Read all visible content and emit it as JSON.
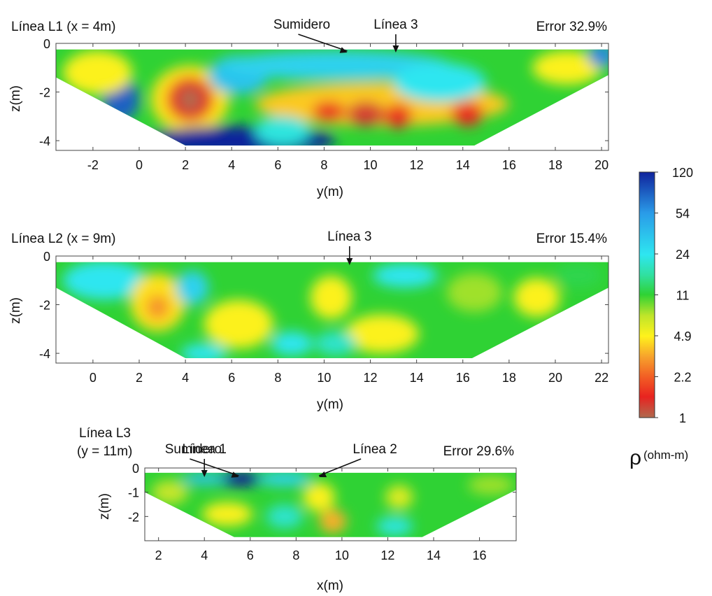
{
  "chart_data": [
    {
      "type": "heatmap",
      "title": "Línea L1 (x = 4m)",
      "error_label": "Error 32.9%",
      "xlabel": "y(m)",
      "ylabel": "z(m)",
      "xlim": [
        -3.6,
        20.3
      ],
      "ylim": [
        -4.4,
        0
      ],
      "xticks": [
        -2,
        0,
        2,
        4,
        6,
        8,
        10,
        12,
        14,
        16,
        18,
        20
      ],
      "yticks": [
        0,
        -2,
        -4
      ],
      "section_top_z": -0.25,
      "section_bottom_z": -4.2,
      "section_polygon": [
        [
          -3.6,
          -0.25
        ],
        [
          20.3,
          -0.25
        ],
        [
          20.3,
          -1.3
        ],
        [
          14.5,
          -4.2
        ],
        [
          2.0,
          -4.2
        ],
        [
          -3.6,
          -1.4
        ]
      ],
      "annotations": [
        {
          "text": "Sumidero",
          "x": 9.0,
          "arrow_type": "diagonal"
        },
        {
          "text": "Línea 3",
          "x": 11.1,
          "arrow_type": "vertical"
        }
      ],
      "anomalies": [
        {
          "y": 2.2,
          "z": -2.3,
          "rx": 1.7,
          "rz": 1.4,
          "resistivity": 4.5
        },
        {
          "y": 2.2,
          "z": -2.3,
          "rx": 1.0,
          "rz": 0.9,
          "resistivity": 1.5
        },
        {
          "y": 2.2,
          "z": -2.3,
          "rx": 0.5,
          "rz": 0.5,
          "resistivity": 1.0
        },
        {
          "y": -0.8,
          "z": -2.3,
          "rx": 0.8,
          "rz": 0.9,
          "resistivity": 80
        },
        {
          "y": -1.8,
          "z": -1.2,
          "rx": 1.5,
          "rz": 0.9,
          "resistivity": 5
        },
        {
          "y": 4.3,
          "z": -1.3,
          "rx": 1.3,
          "rz": 0.8,
          "resistivity": 35
        },
        {
          "y": 4.3,
          "z": -4.0,
          "rx": 4.2,
          "rz": 0.6,
          "resistivity": 120
        },
        {
          "y": 8.5,
          "z": -0.9,
          "rx": 5.0,
          "rz": 0.6,
          "resistivity": 30
        },
        {
          "y": 10.5,
          "z": -2.5,
          "rx": 5.5,
          "rz": 0.9,
          "resistivity": 4
        },
        {
          "y": 8.2,
          "z": -2.8,
          "rx": 0.7,
          "rz": 0.4,
          "resistivity": 1.6
        },
        {
          "y": 9.8,
          "z": -2.9,
          "rx": 0.8,
          "rz": 0.5,
          "resistivity": 1.3
        },
        {
          "y": 11.2,
          "z": -3.0,
          "rx": 0.6,
          "rz": 0.5,
          "resistivity": 1.6
        },
        {
          "y": 14.2,
          "z": -2.9,
          "rx": 0.7,
          "rz": 0.5,
          "resistivity": 1.6
        },
        {
          "y": 13.0,
          "z": -1.6,
          "rx": 2.0,
          "rz": 0.8,
          "resistivity": 24
        },
        {
          "y": 18.5,
          "z": -1.0,
          "rx": 1.5,
          "rz": 0.7,
          "resistivity": 5
        },
        {
          "y": 20.0,
          "z": -0.5,
          "rx": 0.6,
          "rz": 0.5,
          "resistivity": 60
        },
        {
          "y": 6.2,
          "z": -3.6,
          "rx": 1.2,
          "rz": 0.6,
          "resistivity": 22
        }
      ]
    },
    {
      "type": "heatmap",
      "title": "Línea L2 (x = 9m)",
      "error_label": "Error 15.4%",
      "xlabel": "y(m)",
      "ylabel": "z(m)",
      "xlim": [
        -1.6,
        22.3
      ],
      "ylim": [
        -4.4,
        0
      ],
      "xticks": [
        0,
        2,
        4,
        6,
        8,
        10,
        12,
        14,
        16,
        18,
        20,
        22
      ],
      "yticks": [
        0,
        -2,
        -4
      ],
      "section_top_z": -0.25,
      "section_bottom_z": -4.2,
      "section_polygon": [
        [
          -1.6,
          -0.25
        ],
        [
          22.3,
          -0.25
        ],
        [
          22.3,
          -1.3
        ],
        [
          16.4,
          -4.2
        ],
        [
          4.0,
          -4.2
        ],
        [
          -1.6,
          -1.3
        ]
      ],
      "annotations": [
        {
          "text": "Línea 3",
          "x": 11.1,
          "arrow_type": "vertical"
        }
      ],
      "anomalies": [
        {
          "y": 0.5,
          "z": -1.0,
          "rx": 1.8,
          "rz": 0.8,
          "resistivity": 24
        },
        {
          "y": 2.8,
          "z": -1.9,
          "rx": 1.2,
          "rz": 1.2,
          "resistivity": 4.5
        },
        {
          "y": 2.8,
          "z": -2.1,
          "rx": 0.5,
          "rz": 0.5,
          "resistivity": 3
        },
        {
          "y": 4.3,
          "z": -1.3,
          "rx": 0.7,
          "rz": 0.7,
          "resistivity": 30
        },
        {
          "y": 6.3,
          "z": -2.8,
          "rx": 1.5,
          "rz": 1.0,
          "resistivity": 5
        },
        {
          "y": 10.3,
          "z": -1.7,
          "rx": 0.9,
          "rz": 0.9,
          "resistivity": 5
        },
        {
          "y": 12.5,
          "z": -3.2,
          "rx": 1.6,
          "rz": 0.8,
          "resistivity": 5
        },
        {
          "y": 8.6,
          "z": -3.6,
          "rx": 0.9,
          "rz": 0.5,
          "resistivity": 24
        },
        {
          "y": 10.5,
          "z": -3.6,
          "rx": 0.9,
          "rz": 0.5,
          "resistivity": 20
        },
        {
          "y": 4.8,
          "z": -4.0,
          "rx": 1.0,
          "rz": 0.4,
          "resistivity": 24
        },
        {
          "y": 13.5,
          "z": -0.8,
          "rx": 1.4,
          "rz": 0.5,
          "resistivity": 24
        },
        {
          "y": 16.5,
          "z": -1.5,
          "rx": 1.2,
          "rz": 0.8,
          "resistivity": 8
        },
        {
          "y": 19.2,
          "z": -1.7,
          "rx": 1.0,
          "rz": 0.8,
          "resistivity": 5
        },
        {
          "y": 21.0,
          "z": -0.8,
          "rx": 1.0,
          "rz": 0.5,
          "resistivity": 12
        }
      ]
    },
    {
      "type": "heatmap",
      "title": "Línea L3",
      "title_line2": "(y = 11m)",
      "error_label": "Error 29.6%",
      "xlabel": "x(m)",
      "ylabel": "z(m)",
      "xlim": [
        1.4,
        17.6
      ],
      "ylim": [
        -3.0,
        0
      ],
      "xticks": [
        2,
        4,
        6,
        8,
        10,
        12,
        14,
        16
      ],
      "yticks": [
        0,
        -1,
        -2
      ],
      "section_top_z": -0.2,
      "section_bottom_z": -2.85,
      "section_polygon": [
        [
          1.4,
          -0.2
        ],
        [
          17.6,
          -0.2
        ],
        [
          17.6,
          -0.9
        ],
        [
          13.5,
          -2.85
        ],
        [
          5.3,
          -2.85
        ],
        [
          1.4,
          -1.0
        ]
      ],
      "annotations": [
        {
          "text": "Línea 1",
          "x": 4.0,
          "arrow_type": "vertical"
        },
        {
          "text": "Sumidero",
          "x": 5.5,
          "arrow_type": "diagonal"
        },
        {
          "text": "Línea 2",
          "x": 9.0,
          "arrow_type": "diagonal"
        }
      ],
      "anomalies": [
        {
          "y": 5.5,
          "z": -0.45,
          "rx": 1.2,
          "rz": 0.3,
          "resistivity": 120
        },
        {
          "y": 4.0,
          "z": -0.45,
          "rx": 1.0,
          "rz": 0.25,
          "resistivity": 35
        },
        {
          "y": 7.5,
          "z": -0.45,
          "rx": 1.2,
          "rz": 0.3,
          "resistivity": 30
        },
        {
          "y": 2.5,
          "z": -1.0,
          "rx": 0.8,
          "rz": 0.5,
          "resistivity": 7
        },
        {
          "y": 5.0,
          "z": -1.9,
          "rx": 1.1,
          "rz": 0.5,
          "resistivity": 5
        },
        {
          "y": 9.0,
          "z": -1.2,
          "rx": 0.7,
          "rz": 0.6,
          "resistivity": 5
        },
        {
          "y": 9.6,
          "z": -2.2,
          "rx": 0.6,
          "rz": 0.5,
          "resistivity": 3.5
        },
        {
          "y": 12.3,
          "z": -2.4,
          "rx": 0.8,
          "rz": 0.4,
          "resistivity": 22
        },
        {
          "y": 7.5,
          "z": -2.0,
          "rx": 0.8,
          "rz": 0.5,
          "resistivity": 20
        },
        {
          "y": 12.5,
          "z": -1.2,
          "rx": 0.6,
          "rz": 0.5,
          "resistivity": 6
        },
        {
          "y": 16.5,
          "z": -0.7,
          "rx": 1.0,
          "rz": 0.4,
          "resistivity": 8
        }
      ]
    }
  ],
  "colorbar": {
    "ticks": [
      "120",
      "54",
      "24",
      "11",
      "4.9",
      "2.2",
      "1"
    ],
    "tick_values": [
      120,
      54,
      24,
      11,
      4.9,
      2.2,
      1
    ],
    "symbol": "ρ",
    "unit": "(ohm-m)",
    "scale": "log",
    "stops": [
      {
        "value": 1,
        "color": "#b06a4e"
      },
      {
        "value": 1.5,
        "color": "#e82320"
      },
      {
        "value": 2.2,
        "color": "#f25d24"
      },
      {
        "value": 3.3,
        "color": "#f7a32c"
      },
      {
        "value": 4.9,
        "color": "#fff21c"
      },
      {
        "value": 7.3,
        "color": "#bfe52a"
      },
      {
        "value": 11,
        "color": "#2fd234"
      },
      {
        "value": 16,
        "color": "#30e09e"
      },
      {
        "value": 24,
        "color": "#2ee6f0"
      },
      {
        "value": 54,
        "color": "#2a9be8"
      },
      {
        "value": 120,
        "color": "#10239c"
      }
    ]
  }
}
